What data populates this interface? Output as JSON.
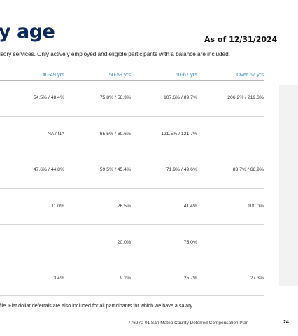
{
  "title": "y age",
  "as_of": "As of 12/31/2024",
  "description": "isory services. Only actively employed and eligible participants with a balance are included.",
  "columns": [
    "40-49 yrs",
    "50-59 yrs",
    "60-67 yrs",
    "Over 67 yrs"
  ],
  "rows": [
    [
      "54.5% / 48.4%",
      "75.8% / 58.9%",
      "107.6% / 89.7%",
      "206.2% / 219.3%"
    ],
    [
      "NA / NA",
      "65.5% / 69.6%",
      "121.5% / 121.7%",
      ""
    ],
    [
      "47.6% / 44.8%",
      "59.5% / 45.4%",
      "71.9% / 49.6%",
      "83.7% / 66.9%"
    ],
    [
      "11.0%",
      "26.5%",
      "41.4%",
      "100.0%"
    ],
    [
      "",
      "20.0%",
      "75.0%",
      ""
    ],
    [
      "3.4%",
      "9.2%",
      "25.7%",
      "27.3%"
    ]
  ],
  "footnote": "file. Flat dollar deferrals are also included for all participants for which we have a salary.",
  "footer": "776970-01 San Mateo County Deferred Compensation Plan",
  "page_number": "24",
  "colors": {
    "title": "#0b2a5b",
    "header": "#3f8fd0",
    "panel": "#f2f2f2"
  }
}
